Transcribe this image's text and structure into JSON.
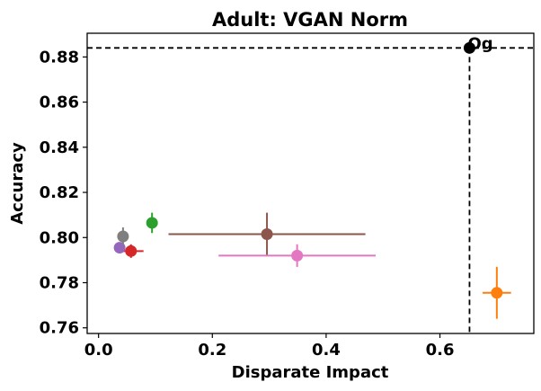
{
  "chart_data": {
    "type": "scatter",
    "title": "Adult: VGAN Norm",
    "xlabel": "Disparate Impact",
    "ylabel": "Accuracy",
    "xlim": [
      -0.02,
      0.765
    ],
    "ylim": [
      0.7575,
      0.8905
    ],
    "xticks": [
      0.0,
      0.2,
      0.4,
      0.6
    ],
    "xtick_labels": [
      "0.0",
      "0.2",
      "0.4",
      "0.6"
    ],
    "yticks": [
      0.76,
      0.78,
      0.8,
      0.82,
      0.84,
      0.86,
      0.88
    ],
    "ytick_labels": [
      "0.76",
      "0.78",
      "0.80",
      "0.82",
      "0.84",
      "0.86",
      "0.88"
    ],
    "grid": false,
    "reference_lines": {
      "x": 0.652,
      "y": 0.884,
      "style": "dashed",
      "color": "#000000"
    },
    "annotation": {
      "text": "Og",
      "x": 0.652,
      "y": 0.884
    },
    "points": [
      {
        "x": 0.652,
        "y": 0.884,
        "xerr": 0.0,
        "yerr": 0.0,
        "color": "#000000"
      },
      {
        "x": 0.7,
        "y": 0.7755,
        "xerr": 0.025,
        "yerr": 0.0115,
        "color": "#ff7f0e"
      },
      {
        "x": 0.094,
        "y": 0.8065,
        "xerr": 0.006,
        "yerr": 0.0045,
        "color": "#2ca02c"
      },
      {
        "x": 0.057,
        "y": 0.794,
        "xerr": 0.022,
        "yerr": 0.003,
        "color": "#d62728"
      },
      {
        "x": 0.037,
        "y": 0.7955,
        "xerr": 0.006,
        "yerr": 0.002,
        "color": "#9467bd"
      },
      {
        "x": 0.296,
        "y": 0.8015,
        "xerr": 0.173,
        "yerr": 0.0095,
        "color": "#8c564b"
      },
      {
        "x": 0.349,
        "y": 0.792,
        "xerr": 0.138,
        "yerr": 0.005,
        "color": "#e377c2"
      },
      {
        "x": 0.043,
        "y": 0.8005,
        "xerr": 0.008,
        "yerr": 0.004,
        "color": "#7f7f7f"
      }
    ]
  }
}
